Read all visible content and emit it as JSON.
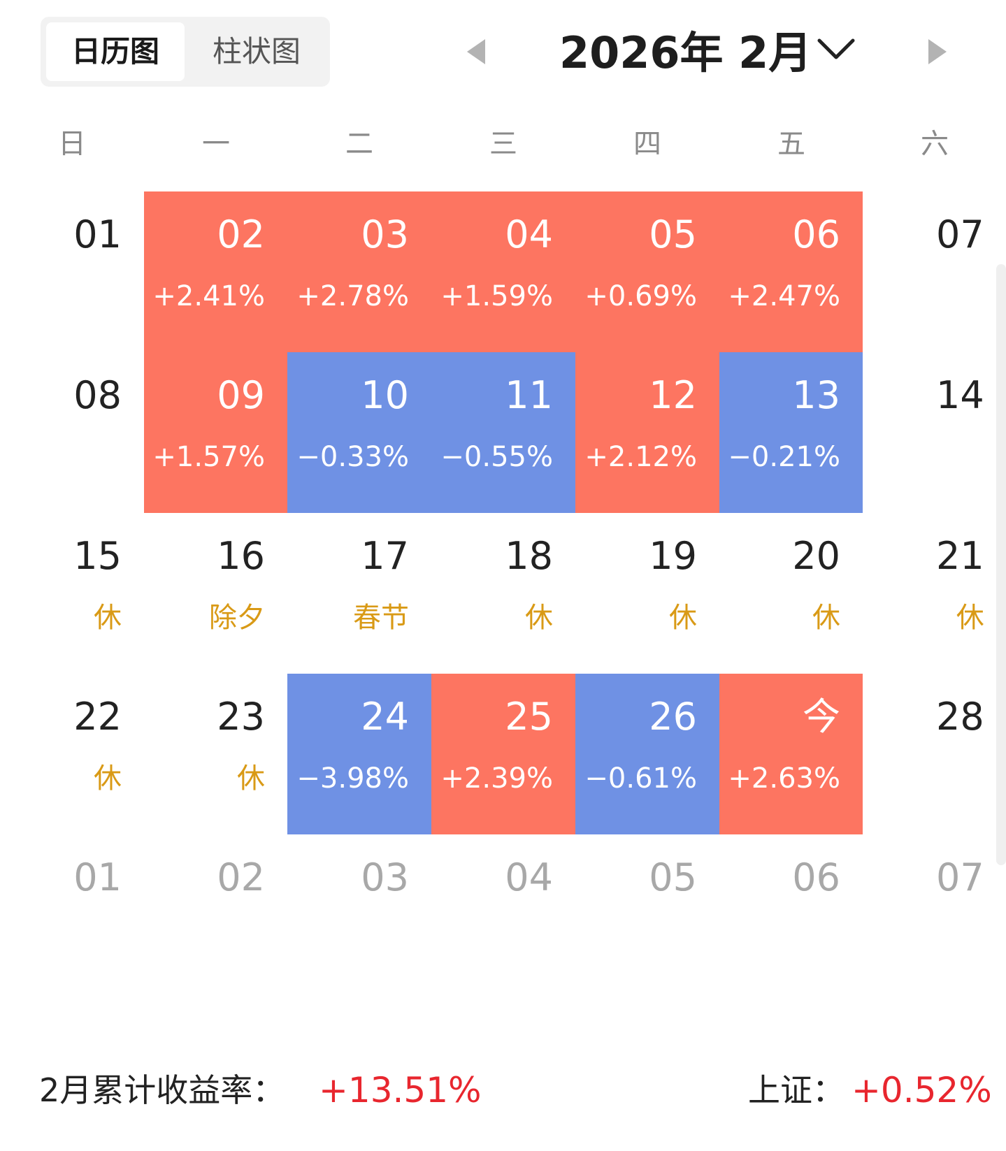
{
  "view_toggle": {
    "calendar_label": "日历图",
    "bar_label": "柱状图"
  },
  "header": {
    "month_title": "2026年 2月"
  },
  "weekdays": [
    "日",
    "一",
    "二",
    "三",
    "四",
    "五",
    "六"
  ],
  "colors": {
    "up": "#fd7561",
    "down": "#6f91e4",
    "holiday_text": "#d99a16",
    "summary_value": "#e8262e"
  },
  "calendar": {
    "rows": [
      [
        {
          "day": "01"
        },
        {
          "day": "02",
          "change": "+2.41%",
          "dir": "up"
        },
        {
          "day": "03",
          "change": "+2.78%",
          "dir": "up"
        },
        {
          "day": "04",
          "change": "+1.59%",
          "dir": "up"
        },
        {
          "day": "05",
          "change": "+0.69%",
          "dir": "up"
        },
        {
          "day": "06",
          "change": "+2.47%",
          "dir": "up"
        },
        {
          "day": "07"
        }
      ],
      [
        {
          "day": "08"
        },
        {
          "day": "09",
          "change": "+1.57%",
          "dir": "up"
        },
        {
          "day": "10",
          "change": "−0.33%",
          "dir": "down"
        },
        {
          "day": "11",
          "change": "−0.55%",
          "dir": "down"
        },
        {
          "day": "12",
          "change": "+2.12%",
          "dir": "up"
        },
        {
          "day": "13",
          "change": "−0.21%",
          "dir": "down"
        },
        {
          "day": "14"
        }
      ],
      [
        {
          "day": "15",
          "holiday": "休"
        },
        {
          "day": "16",
          "holiday": "除夕"
        },
        {
          "day": "17",
          "holiday": "春节"
        },
        {
          "day": "18",
          "holiday": "休"
        },
        {
          "day": "19",
          "holiday": "休"
        },
        {
          "day": "20",
          "holiday": "休"
        },
        {
          "day": "21",
          "holiday": "休"
        }
      ],
      [
        {
          "day": "22",
          "holiday": "休"
        },
        {
          "day": "23",
          "holiday": "休"
        },
        {
          "day": "24",
          "change": "−3.98%",
          "dir": "down"
        },
        {
          "day": "25",
          "change": "+2.39%",
          "dir": "up"
        },
        {
          "day": "26",
          "change": "−0.61%",
          "dir": "down"
        },
        {
          "day": "今",
          "change": "+2.63%",
          "dir": "up"
        },
        {
          "day": "28"
        }
      ],
      [
        {
          "day": "01",
          "next_month": true
        },
        {
          "day": "02",
          "next_month": true
        },
        {
          "day": "03",
          "next_month": true
        },
        {
          "day": "04",
          "next_month": true
        },
        {
          "day": "05",
          "next_month": true
        },
        {
          "day": "06",
          "next_month": true
        },
        {
          "day": "07",
          "next_month": true
        }
      ]
    ]
  },
  "summary": {
    "cumulative_label": "2月累计收益率：",
    "cumulative_value": "+13.51%",
    "index_label": "上证：",
    "index_value": "+0.52%"
  }
}
